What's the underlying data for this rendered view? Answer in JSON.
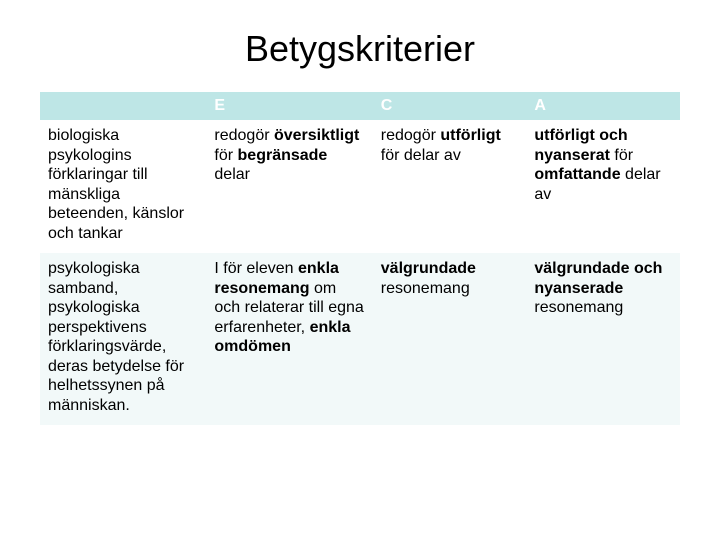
{
  "title": "Betygskriterier",
  "table": {
    "header_bg": "#bee6e6",
    "header_fg": "#ffffff",
    "row_bg_odd": "#ffffff",
    "row_bg_even": "#f2f9f9",
    "text_color": "#000000",
    "fontsize_title": 36,
    "fontsize_cell": 16,
    "columns": [
      "",
      "E",
      "C",
      "A"
    ],
    "col_widths_pct": [
      26,
      26,
      24,
      24
    ],
    "rows": [
      {
        "label": "biologiska psykologins förklaringar till mänskliga beteenden, känslor och tankar",
        "E": "redogör <b>översiktligt</b> för <b>begränsade</b> delar",
        "C": "redogör <b>utförligt</b> för delar av",
        "A": "<b>utförligt och nyanserat</b> för <b>omfattande</b> delar av"
      },
      {
        "label": "psykologiska samband, psykologiska perspektivens förklaringsvärde, deras betydelse för helhetssynen på människan.",
        "E": "I för eleven <b>enkla resonemang</b> om och relaterar till egna erfarenheter, <b>enkla omdömen</b>",
        "C": "<b>välgrundade</b> resonemang",
        "A": "<b>välgrundade och nyanserade</b> resonemang"
      }
    ]
  }
}
